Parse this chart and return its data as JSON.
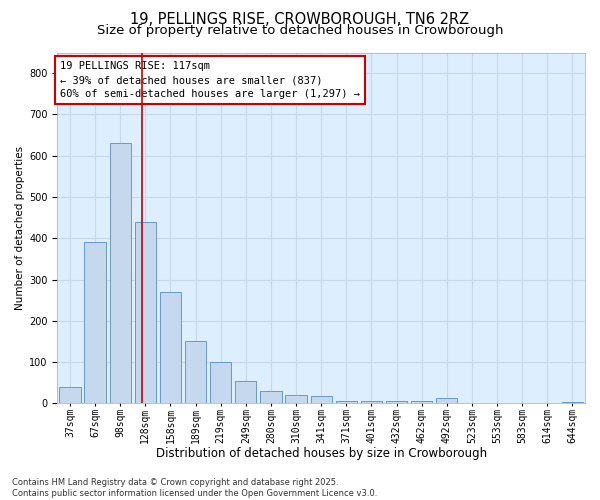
{
  "title1": "19, PELLINGS RISE, CROWBOROUGH, TN6 2RZ",
  "title2": "Size of property relative to detached houses in Crowborough",
  "xlabel": "Distribution of detached houses by size in Crowborough",
  "ylabel": "Number of detached properties",
  "categories": [
    "37sqm",
    "67sqm",
    "98sqm",
    "128sqm",
    "158sqm",
    "189sqm",
    "219sqm",
    "249sqm",
    "280sqm",
    "310sqm",
    "341sqm",
    "371sqm",
    "401sqm",
    "432sqm",
    "462sqm",
    "492sqm",
    "523sqm",
    "553sqm",
    "583sqm",
    "614sqm",
    "644sqm"
  ],
  "values": [
    40,
    390,
    630,
    440,
    270,
    150,
    100,
    55,
    30,
    20,
    18,
    5,
    5,
    5,
    5,
    12,
    2,
    2,
    2,
    2,
    3
  ],
  "bar_color": "#c5d8ee",
  "bar_edge_color": "#6699cc",
  "vline_x": 2.85,
  "annotation_text": "19 PELLINGS RISE: 117sqm\n← 39% of detached houses are smaller (837)\n60% of semi-detached houses are larger (1,297) →",
  "annotation_box_color": "#ffffff",
  "annotation_box_edge_color": "#cc0000",
  "vline_color": "#cc0000",
  "ylim": [
    0,
    850
  ],
  "yticks": [
    0,
    100,
    200,
    300,
    400,
    500,
    600,
    700,
    800
  ],
  "grid_color": "#c8d8e8",
  "fig_background": "#ffffff",
  "plot_background": "#ddeeff",
  "footer": "Contains HM Land Registry data © Crown copyright and database right 2025.\nContains public sector information licensed under the Open Government Licence v3.0.",
  "title_fontsize": 10.5,
  "subtitle_fontsize": 9.5,
  "annotation_fontsize": 7.5,
  "xlabel_fontsize": 8.5,
  "ylabel_fontsize": 7.5,
  "tick_fontsize": 7,
  "footer_fontsize": 6
}
